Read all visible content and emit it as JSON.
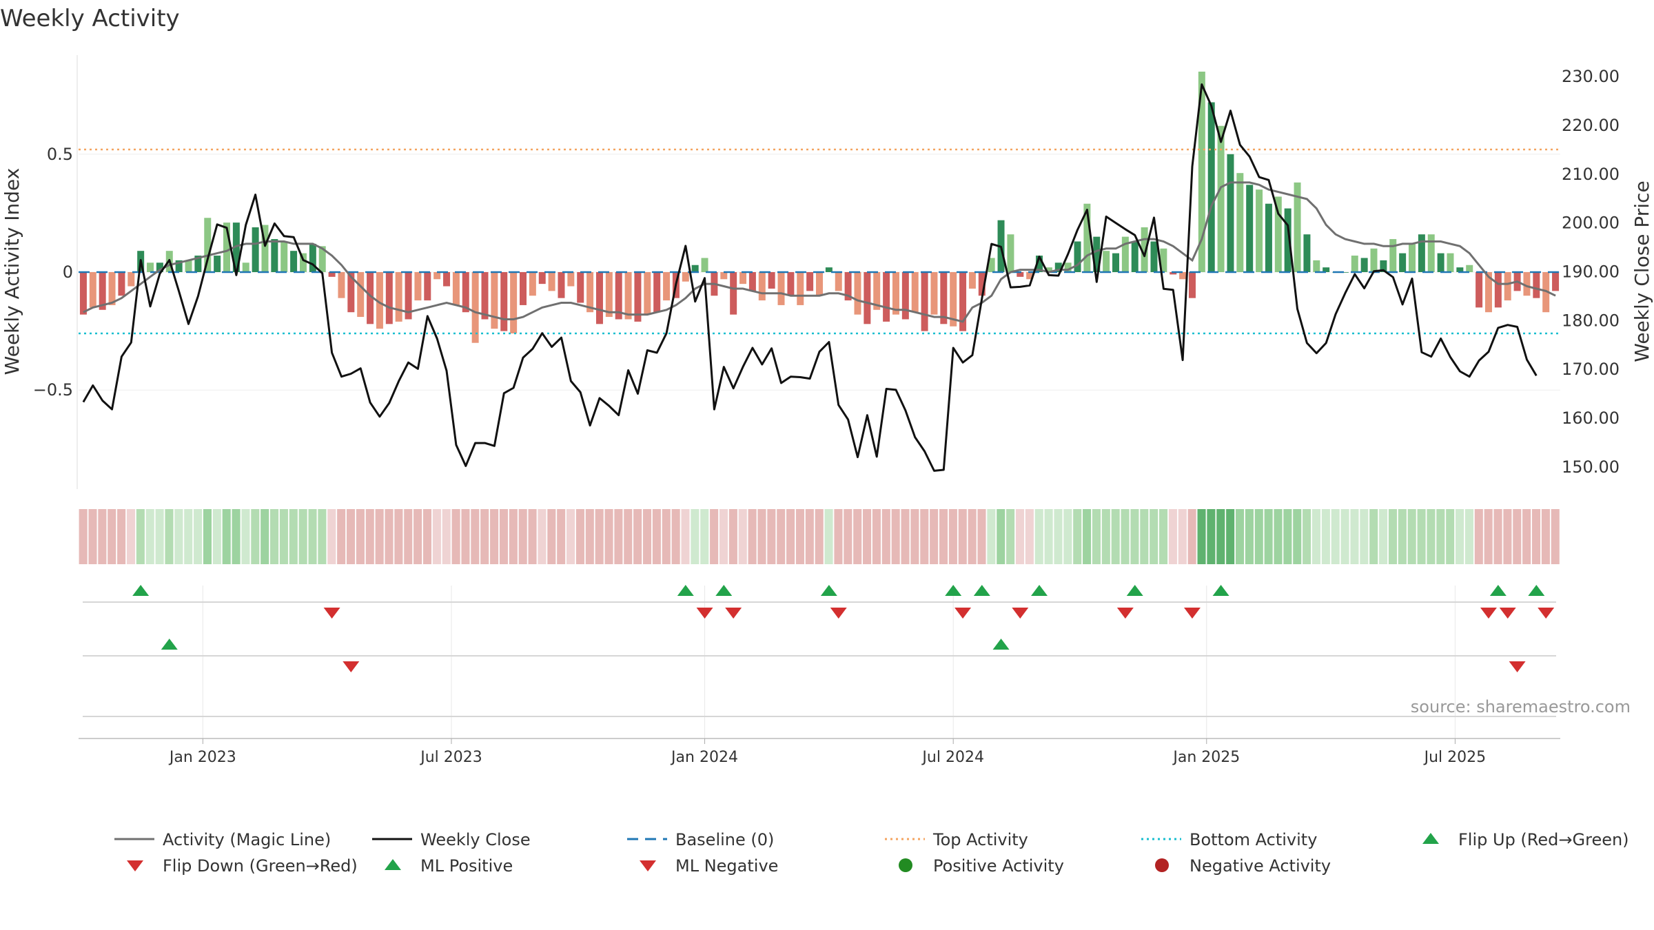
{
  "chart_data": {
    "type": "bar",
    "title": "Weekly Activity",
    "ylabel_left": "Weekly Activity Index",
    "ylabel_right": "Weekly Close Price",
    "source": "source: sharemaestro.com",
    "ylim_left": [
      -0.92,
      0.92
    ],
    "yticks_left": [
      {
        "label": "0.5",
        "value": 0.5
      },
      {
        "label": "0",
        "value": 0
      },
      {
        "label": "−0.5",
        "value": -0.5
      }
    ],
    "ylim_right": [
      145.45,
      234.4
    ],
    "yticks_right": [
      "230.00",
      "220.00",
      "210.00",
      "200.00",
      "190.00",
      "180.00",
      "170.00",
      "160.00",
      "150.00"
    ],
    "top_activity": 0.52,
    "bottom_activity": -0.26,
    "x_start": "2022-10-03",
    "xticks": [
      {
        "label": "Jan 2023",
        "week": 13
      },
      {
        "label": "Jul 2023",
        "week": 39
      },
      {
        "label": "Jan 2024",
        "week": 65.5
      },
      {
        "label": "Jul 2024",
        "week": 91.5
      },
      {
        "label": "Jan 2025",
        "week": 118
      },
      {
        "label": "Jul 2025",
        "week": 144
      }
    ],
    "activity": [
      -0.18,
      -0.15,
      -0.16,
      -0.14,
      -0.1,
      -0.06,
      0.09,
      0.04,
      0.04,
      0.09,
      0.05,
      0.05,
      0.07,
      0.23,
      0.07,
      0.21,
      0.21,
      0.04,
      0.19,
      0.2,
      0.14,
      0.13,
      0.09,
      0.08,
      0.12,
      0.11,
      -0.02,
      -0.11,
      -0.17,
      -0.19,
      -0.22,
      -0.24,
      -0.22,
      -0.21,
      -0.2,
      -0.12,
      -0.12,
      -0.03,
      -0.06,
      -0.14,
      -0.17,
      -0.3,
      -0.2,
      -0.24,
      -0.25,
      -0.26,
      -0.14,
      -0.1,
      -0.05,
      -0.08,
      -0.11,
      -0.06,
      -0.13,
      -0.17,
      -0.22,
      -0.19,
      -0.2,
      -0.2,
      -0.21,
      -0.18,
      -0.17,
      -0.12,
      -0.11,
      -0.04,
      0.03,
      0.06,
      -0.1,
      -0.03,
      -0.18,
      -0.05,
      -0.08,
      -0.12,
      -0.07,
      -0.14,
      -0.1,
      -0.14,
      -0.08,
      -0.1,
      0.02,
      -0.08,
      -0.12,
      -0.18,
      -0.22,
      -0.16,
      -0.21,
      -0.18,
      -0.2,
      -0.17,
      -0.25,
      -0.18,
      -0.22,
      -0.23,
      -0.25,
      -0.07,
      -0.1,
      0.06,
      0.22,
      0.16,
      -0.02,
      -0.03,
      0.07,
      0.02,
      0.04,
      0.04,
      0.13,
      0.29,
      0.15,
      0.09,
      0.08,
      0.15,
      0.13,
      0.19,
      0.13,
      0.1,
      -0.01,
      -0.03,
      -0.11,
      0.85,
      0.72,
      0.62,
      0.5,
      0.42,
      0.37,
      0.35,
      0.29,
      0.32,
      0.27,
      0.38,
      0.16,
      0.05,
      0.02,
      0,
      0,
      0.07,
      0.06,
      0.1,
      0.05,
      0.14,
      0.08,
      0.12,
      0.16,
      0.16,
      0.08,
      0.08,
      0.02,
      0.03,
      -0.15,
      -0.17,
      -0.15,
      -0.12,
      -0.08,
      -0.1,
      -0.11,
      -0.17,
      -0.08
    ],
    "magic_line": [
      -0.17,
      -0.15,
      -0.14,
      -0.13,
      -0.11,
      -0.08,
      -0.05,
      -0.02,
      0.01,
      0.03,
      0.04,
      0.05,
      0.06,
      0.07,
      0.08,
      0.09,
      0.11,
      0.12,
      0.12,
      0.13,
      0.13,
      0.13,
      0.12,
      0.12,
      0.12,
      0.1,
      0.07,
      0.03,
      -0.02,
      -0.06,
      -0.1,
      -0.13,
      -0.15,
      -0.16,
      -0.17,
      -0.16,
      -0.15,
      -0.14,
      -0.13,
      -0.14,
      -0.15,
      -0.17,
      -0.18,
      -0.19,
      -0.2,
      -0.2,
      -0.19,
      -0.17,
      -0.15,
      -0.14,
      -0.13,
      -0.13,
      -0.14,
      -0.15,
      -0.16,
      -0.17,
      -0.17,
      -0.18,
      -0.18,
      -0.18,
      -0.17,
      -0.16,
      -0.14,
      -0.11,
      -0.07,
      -0.05,
      -0.05,
      -0.06,
      -0.07,
      -0.07,
      -0.08,
      -0.09,
      -0.09,
      -0.09,
      -0.1,
      -0.1,
      -0.1,
      -0.1,
      -0.09,
      -0.09,
      -0.1,
      -0.12,
      -0.13,
      -0.14,
      -0.15,
      -0.16,
      -0.16,
      -0.17,
      -0.18,
      -0.19,
      -0.19,
      -0.2,
      -0.21,
      -0.15,
      -0.13,
      -0.1,
      -0.03,
      0,
      0.01,
      0.01,
      0.01,
      0,
      0.01,
      0.01,
      0.03,
      0.07,
      0.09,
      0.1,
      0.1,
      0.12,
      0.13,
      0.14,
      0.14,
      0.13,
      0.11,
      0.08,
      0.05,
      0.14,
      0.28,
      0.36,
      0.38,
      0.38,
      0.38,
      0.37,
      0.35,
      0.34,
      0.33,
      0.32,
      0.31,
      0.27,
      0.2,
      0.16,
      0.14,
      0.13,
      0.12,
      0.12,
      0.11,
      0.11,
      0.12,
      0.12,
      0.13,
      0.13,
      0.13,
      0.12,
      0.11,
      0.08,
      0.03,
      -0.02,
      -0.05,
      -0.05,
      -0.04,
      -0.06,
      -0.07,
      -0.08,
      -0.1
    ],
    "weekly_close": [
      163.3,
      166.7,
      163.6,
      161.8,
      172.6,
      175.5,
      192.4,
      182.9,
      189.6,
      192.4,
      186,
      179.3,
      185,
      192.6,
      199.7,
      199,
      189.3,
      199.6,
      205.8,
      195.3,
      199.9,
      197.3,
      197.1,
      192.4,
      191.5,
      189.7,
      173.4,
      168.5,
      169.1,
      170.2,
      163.2,
      160.3,
      163.1,
      167.6,
      171.4,
      170.1,
      180.9,
      176.3,
      169.7,
      154.5,
      150.2,
      154.9,
      154.9,
      154.3,
      165.1,
      166.2,
      172.4,
      174.2,
      177.4,
      174.6,
      176.5,
      167.6,
      165.3,
      158.5,
      164.1,
      162.5,
      160.6,
      169.8,
      165,
      173.9,
      173.4,
      177.4,
      187.5,
      195.3,
      183.9,
      188.7,
      161.8,
      170.5,
      166.1,
      170.5,
      174.4,
      171,
      174.3,
      167.2,
      168.5,
      168.4,
      168.1,
      173.6,
      175.6,
      162.7,
      159.7,
      152,
      160.6,
      152.1,
      166,
      165.8,
      161.6,
      156.1,
      153.2,
      149.2,
      149.4,
      174.4,
      171.4,
      172.9,
      184.5,
      195.7,
      195.1,
      186.8,
      186.9,
      187.2,
      193.1,
      189.3,
      189.2,
      193.6,
      198.6,
      202.7,
      187.9,
      201.3,
      200,
      198.7,
      197.5,
      193.2,
      201.1,
      186.5,
      186.3,
      171.9,
      211.6,
      228.4,
      224,
      216.6,
      223,
      216,
      213.6,
      209.4,
      208.8,
      201.9,
      199.5,
      182.4,
      175.4,
      173.3,
      175.4,
      181.3,
      185.6,
      189.5,
      186.6,
      190.1,
      190.3,
      188.9,
      183.3,
      188.6,
      173.5,
      172.6,
      176.3,
      172.5,
      169.6,
      168.5,
      171.8,
      173.6,
      178.5,
      179.1,
      178.7,
      172,
      168.7
    ],
    "heat_strip": [
      -0.18,
      -0.15,
      -0.16,
      -0.14,
      -0.1,
      -0.06,
      0.09,
      0.04,
      0.04,
      0.09,
      0.05,
      0.05,
      0.07,
      0.23,
      0.07,
      0.21,
      0.21,
      0.04,
      0.19,
      0.2,
      0.14,
      0.13,
      0.09,
      0.08,
      0.12,
      0.11,
      -0.02,
      -0.11,
      -0.17,
      -0.19,
      -0.22,
      -0.24,
      -0.22,
      -0.21,
      -0.2,
      -0.12,
      -0.12,
      -0.03,
      -0.06,
      -0.14,
      -0.17,
      -0.3,
      -0.2,
      -0.24,
      -0.25,
      -0.26,
      -0.14,
      -0.1,
      -0.05,
      -0.08,
      -0.11,
      -0.06,
      -0.13,
      -0.17,
      -0.22,
      -0.19,
      -0.2,
      -0.2,
      -0.21,
      -0.18,
      -0.17,
      -0.12,
      -0.11,
      -0.04,
      0.03,
      0.06,
      -0.1,
      -0.03,
      -0.18,
      -0.05,
      -0.08,
      -0.12,
      -0.07,
      -0.14,
      -0.1,
      -0.14,
      -0.08,
      -0.1,
      0.02,
      -0.08,
      -0.12,
      -0.18,
      -0.22,
      -0.16,
      -0.21,
      -0.18,
      -0.2,
      -0.17,
      -0.25,
      -0.18,
      -0.22,
      -0.23,
      -0.25,
      -0.07,
      -0.1,
      0.06,
      0.22,
      0.16,
      -0.02,
      -0.03,
      0.07,
      0.02,
      0.04,
      0.04,
      0.13,
      0.29,
      0.15,
      0.09,
      0.08,
      0.15,
      0.13,
      0.19,
      0.13,
      0.1,
      -0.01,
      -0.03,
      -0.11,
      0.85,
      0.72,
      0.62,
      0.5,
      0.42,
      0.37,
      0.35,
      0.29,
      0.32,
      0.27,
      0.38,
      0.16,
      0.05,
      0.02,
      0,
      0,
      0.07,
      0.06,
      0.1,
      0.05,
      0.14,
      0.08,
      0.12,
      0.16,
      0.16,
      0.08,
      0.08,
      0.02,
      0.03,
      -0.15,
      -0.17,
      -0.15,
      -0.12,
      -0.08,
      -0.1,
      -0.11,
      -0.17,
      -0.08
    ],
    "flip_up_weeks": [
      6,
      63,
      67,
      78,
      91,
      94,
      100,
      110,
      119,
      148,
      152
    ],
    "flip_down_weeks": [
      26,
      65,
      68,
      79,
      92,
      98,
      109,
      116,
      147,
      149,
      153
    ],
    "ml_positive_weeks": [
      9,
      96
    ],
    "ml_negative_weeks": [
      28,
      150
    ],
    "colors": {
      "positive_dark": "#2e8b57",
      "positive_light": "#8cc784",
      "negative_dark": "#cd5c5c",
      "negative_light": "#e8967a",
      "magic_line": "#707070",
      "weekly_close": "#111111",
      "baseline": "#1f77b4",
      "top_activity": "#f4a460",
      "bottom_activity": "#17becf",
      "flip_up": "#22a34a",
      "flip_down": "#d32f2f",
      "positive_dot": "#228b22",
      "negative_dot": "#b22222"
    },
    "legend": [
      {
        "label": "Activity (Magic Line)",
        "type": "line",
        "color": "#707070"
      },
      {
        "label": "Weekly Close",
        "type": "line",
        "color": "#111111"
      },
      {
        "label": "Baseline (0)",
        "type": "dash",
        "color": "#1f77b4"
      },
      {
        "label": "Top Activity",
        "type": "dot-line",
        "color": "#f4a460"
      },
      {
        "label": "Bottom Activity",
        "type": "dot-line",
        "color": "#17becf"
      },
      {
        "label": "Flip Up (Red→Green)",
        "type": "tri-up",
        "color": "#22a34a"
      },
      {
        "label": "Flip Down (Green→Red)",
        "type": "tri-down",
        "color": "#d32f2f"
      },
      {
        "label": "ML Positive",
        "type": "tri-up",
        "color": "#22a34a"
      },
      {
        "label": "ML Negative",
        "type": "tri-down",
        "color": "#d32f2f"
      },
      {
        "label": "Positive Activity",
        "type": "circle",
        "color": "#228b22"
      },
      {
        "label": "Negative Activity",
        "type": "circle",
        "color": "#b22222"
      }
    ]
  }
}
